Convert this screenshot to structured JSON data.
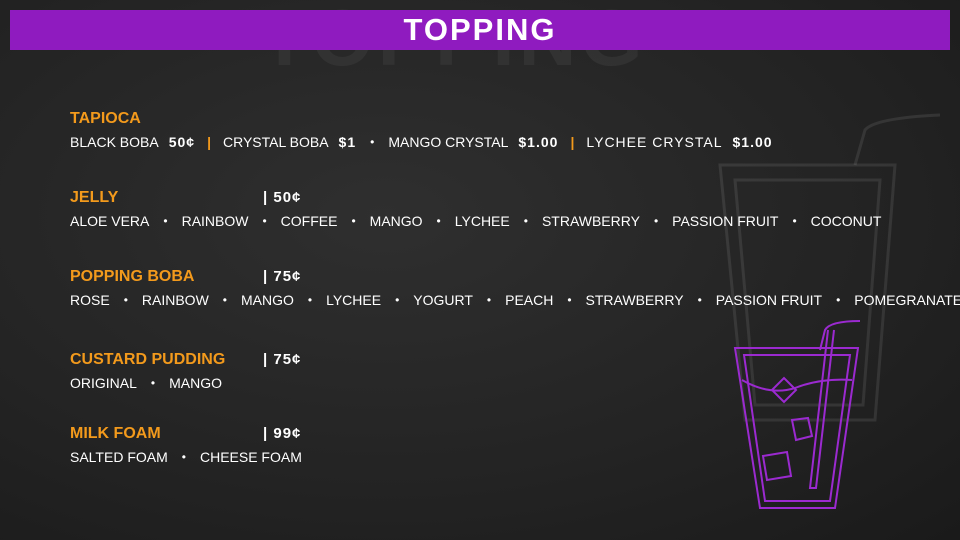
{
  "background_text": "TOPPING",
  "title": "TOPPING",
  "colors": {
    "accent": "#8f1bbf",
    "category": "#f39a1c"
  },
  "tapioca": {
    "name": "TAPIOCA",
    "items": [
      {
        "name": "BLACK BOBA",
        "price": "50¢"
      },
      {
        "name": "CRYSTAL BOBA",
        "price": "$1"
      },
      {
        "name": "MANGO CRYSTAL",
        "price": "$1.00"
      },
      {
        "name": "LYCHEE CRYSTAL",
        "price": "$1.00"
      }
    ]
  },
  "jelly": {
    "name": "JELLY",
    "price": "| 50¢",
    "items": [
      "ALOE VERA",
      "RAINBOW",
      "COFFEE",
      "MANGO",
      "LYCHEE",
      "STRAWBERRY",
      "PASSION FRUIT",
      "COCONUT"
    ]
  },
  "popping": {
    "name": "POPPING BOBA",
    "price": "| 75¢",
    "items": [
      "ROSE",
      "RAINBOW",
      "MANGO",
      "LYCHEE",
      "YOGURT",
      "PEACH",
      "STRAWBERRY",
      "PASSION FRUIT",
      "POMEGRANATE"
    ]
  },
  "custard": {
    "name": "CUSTARD PUDDING",
    "price": "| 75¢",
    "items": [
      "ORIGINAL",
      "MANGO"
    ]
  },
  "foam": {
    "name": "MILK FOAM",
    "price": "| 99¢",
    "items": [
      "SALTED FOAM",
      "CHEESE FOAM"
    ]
  },
  "icons": [
    "drink-glass-outline-icon",
    "drink-glass-neon-icon"
  ]
}
